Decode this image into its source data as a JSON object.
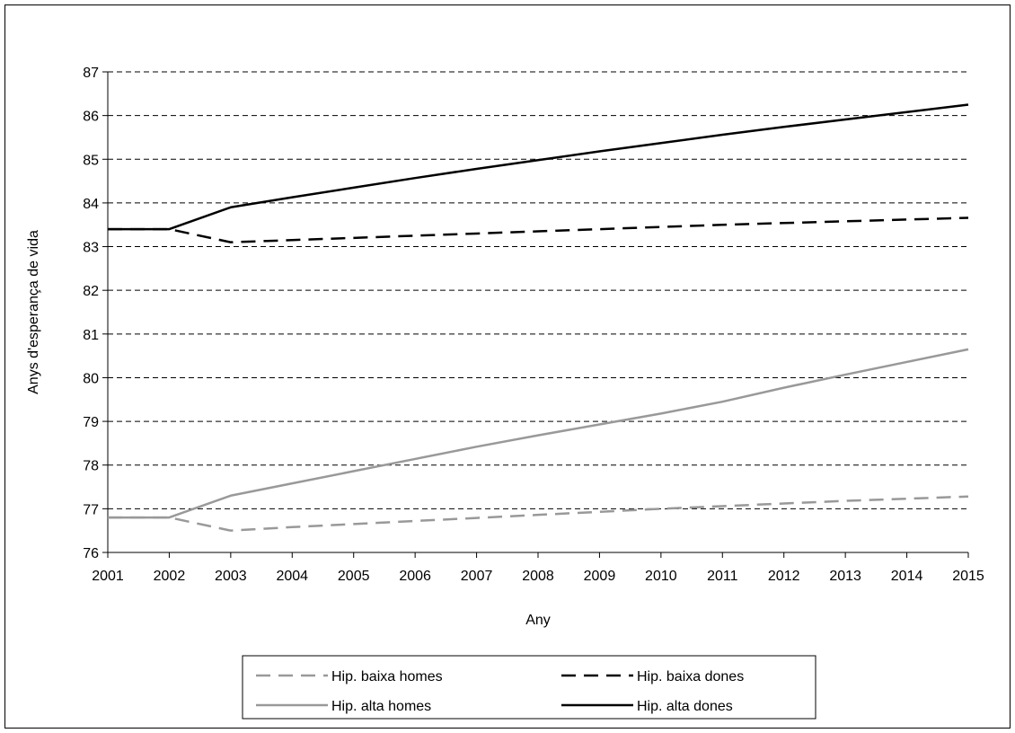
{
  "chart_data": {
    "type": "line",
    "title": "",
    "xlabel": "Any",
    "ylabel": "Anys d'esperança de vida",
    "ylim": [
      76,
      87
    ],
    "x_ticks": [
      "2001",
      "2002",
      "2003",
      "2004",
      "2005",
      "2006",
      "2007",
      "2008",
      "2009",
      "2010",
      "2011",
      "2012",
      "2013",
      "2014",
      "2015"
    ],
    "y_ticks": [
      "76",
      "77",
      "78",
      "79",
      "80",
      "81",
      "82",
      "83",
      "84",
      "85",
      "86",
      "87"
    ],
    "grid": "horizontal dashed",
    "legend_position": "bottom",
    "x": [
      2001,
      2002,
      2003,
      2004,
      2005,
      2006,
      2007,
      2008,
      2009,
      2010,
      2011,
      2012,
      2013,
      2014,
      2015
    ],
    "series": [
      {
        "name": "Hip. baixa homes",
        "color": "#999999",
        "dash": "dashed",
        "values": [
          76.8,
          76.8,
          76.5,
          76.58,
          76.65,
          76.72,
          76.79,
          76.86,
          76.93,
          77.0,
          77.06,
          77.12,
          77.18,
          77.23,
          77.28
        ]
      },
      {
        "name": "Hip. baixa dones",
        "color": "#000000",
        "dash": "dashed",
        "values": [
          83.4,
          83.4,
          83.1,
          83.15,
          83.2,
          83.25,
          83.3,
          83.35,
          83.4,
          83.45,
          83.5,
          83.54,
          83.58,
          83.62,
          83.66
        ]
      },
      {
        "name": "Hip. alta homes",
        "color": "#999999",
        "dash": "solid",
        "values": [
          76.8,
          76.8,
          77.3,
          77.58,
          77.86,
          78.14,
          78.42,
          78.68,
          78.93,
          79.18,
          79.45,
          79.77,
          80.07,
          80.36,
          80.65
        ]
      },
      {
        "name": "Hip. alta dones",
        "color": "#000000",
        "dash": "solid",
        "values": [
          83.4,
          83.4,
          83.9,
          84.13,
          84.35,
          84.57,
          84.78,
          84.98,
          85.18,
          85.37,
          85.56,
          85.74,
          85.91,
          86.08,
          86.25
        ]
      }
    ]
  }
}
